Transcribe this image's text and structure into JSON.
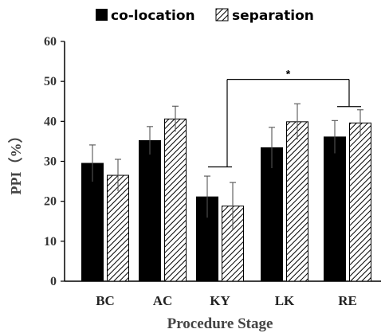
{
  "chart_data": {
    "type": "bar",
    "categories": [
      "BC",
      "AC",
      "KY",
      "LK",
      "RE"
    ],
    "series": [
      {
        "name": "co-location",
        "values": [
          29.5,
          35.2,
          21.1,
          33.4,
          36.1
        ],
        "errors": [
          4.6,
          3.5,
          5.2,
          5.1,
          4.1
        ],
        "fill": "#000000",
        "pattern": "solid"
      },
      {
        "name": "separation",
        "values": [
          26.5,
          40.6,
          18.8,
          39.9,
          39.6
        ],
        "errors": [
          4.0,
          3.2,
          5.9,
          4.5,
          3.3
        ],
        "fill": "#ffffff",
        "pattern": "diagonal-hatch"
      }
    ],
    "xlabel": "Procedure Stage",
    "ylabel": "PPI（%）",
    "ylim": [
      0,
      60
    ],
    "yticks": [
      "0",
      "10",
      "20",
      "30",
      "40",
      "50",
      "60"
    ],
    "grid": false,
    "legend_position": "top-center",
    "annotations": [
      {
        "text": "*",
        "between": [
          "KY",
          "RE"
        ]
      }
    ]
  }
}
